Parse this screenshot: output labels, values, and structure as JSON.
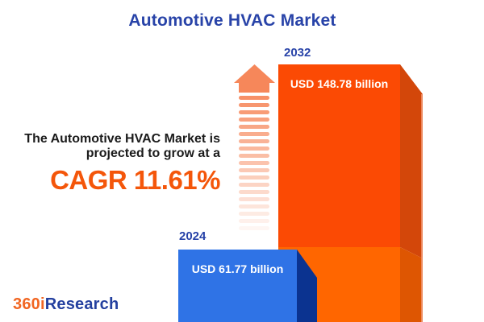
{
  "title": "Automotive HVAC Market",
  "growth_note": {
    "line1": "The Automotive HVAC Market is",
    "line2": "projected to grow at a",
    "cagr": "CAGR 11.61%"
  },
  "bars": {
    "b2024": {
      "year": "2024",
      "value_label": "USD 61.77 billion"
    },
    "b2032": {
      "year": "2032",
      "value_label": "USD 148.78 billion"
    }
  },
  "logo": {
    "part1": "360i",
    "part2": "Research"
  },
  "icons": {
    "growth_arrow": "up-arrow-icon"
  },
  "colors": {
    "title_blue": "#2843A8",
    "bar_2032_face_top": "#FB4A04",
    "bar_2032_face_bottom": "#FF6600",
    "bar_2032_side_top": "#D3470A",
    "bar_2032_side_bottom": "#DE5602",
    "bar_2032_side_edge": "#F0926B",
    "bar_2024_face": "#2F73E6",
    "bar_2024_side": "#0B3390",
    "arrow": "#F6875A",
    "cagr_orange": "#F4560A",
    "body_text": "#1B1B1B",
    "logo_orange": "#F16622",
    "logo_blue": "#24409F",
    "value_text": "#FFFFFF"
  },
  "chart_data": {
    "type": "bar",
    "title": "Automotive HVAC Market",
    "categories": [
      "2024",
      "2032"
    ],
    "values": [
      61.77,
      148.78
    ],
    "unit": "USD billion",
    "value_labels": [
      "USD 61.77 billion",
      "USD 148.78 billion"
    ],
    "cagr_percent": 11.61,
    "annotation": "The Automotive HVAC Market is projected to grow at a CAGR 11.61%",
    "legend": "none",
    "grid": false,
    "axes_shown": false,
    "style": "3d-infographic bars, blue = 2024, orange = 2032, not drawn to numeric scale"
  }
}
